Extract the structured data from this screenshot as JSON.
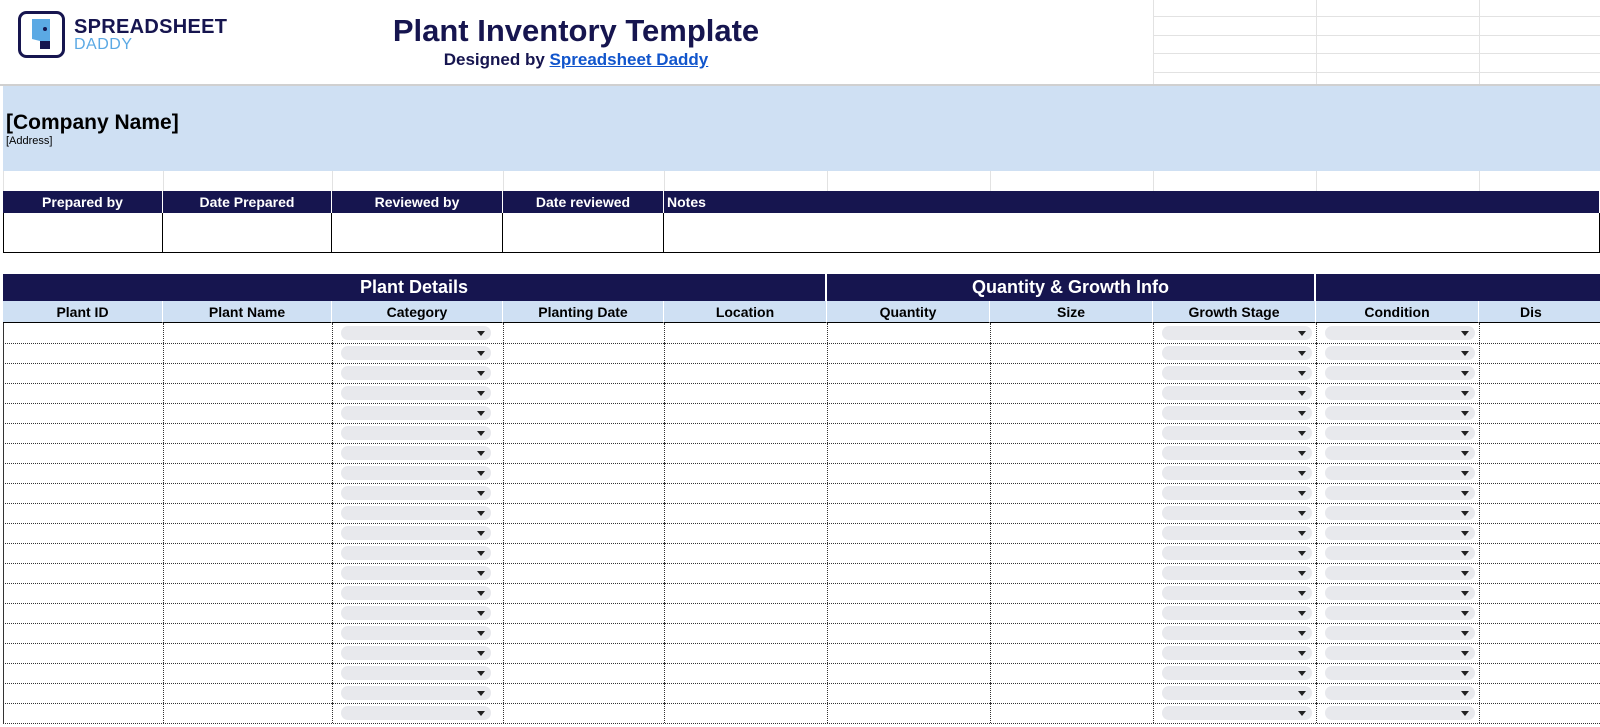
{
  "logo": {
    "line1": "SPREADSHEET",
    "line2": "DADDY"
  },
  "header": {
    "title": "Plant Inventory Template",
    "designed_by": "Designed by",
    "link": "Spreadsheet Daddy"
  },
  "company": {
    "name": "[Company Name]",
    "address": "[Address]"
  },
  "info_table": {
    "headers": [
      "Prepared by",
      "Date Prepared",
      "Reviewed by",
      "Date reviewed",
      "Notes"
    ]
  },
  "table": {
    "sections": [
      "Plant Details",
      "Quantity & Growth Info"
    ],
    "columns": [
      "Plant ID",
      "Plant Name",
      "Category",
      "Planting Date",
      "Location",
      "Quantity",
      "Size",
      "Growth Stage",
      "Condition",
      "Dis"
    ]
  }
}
